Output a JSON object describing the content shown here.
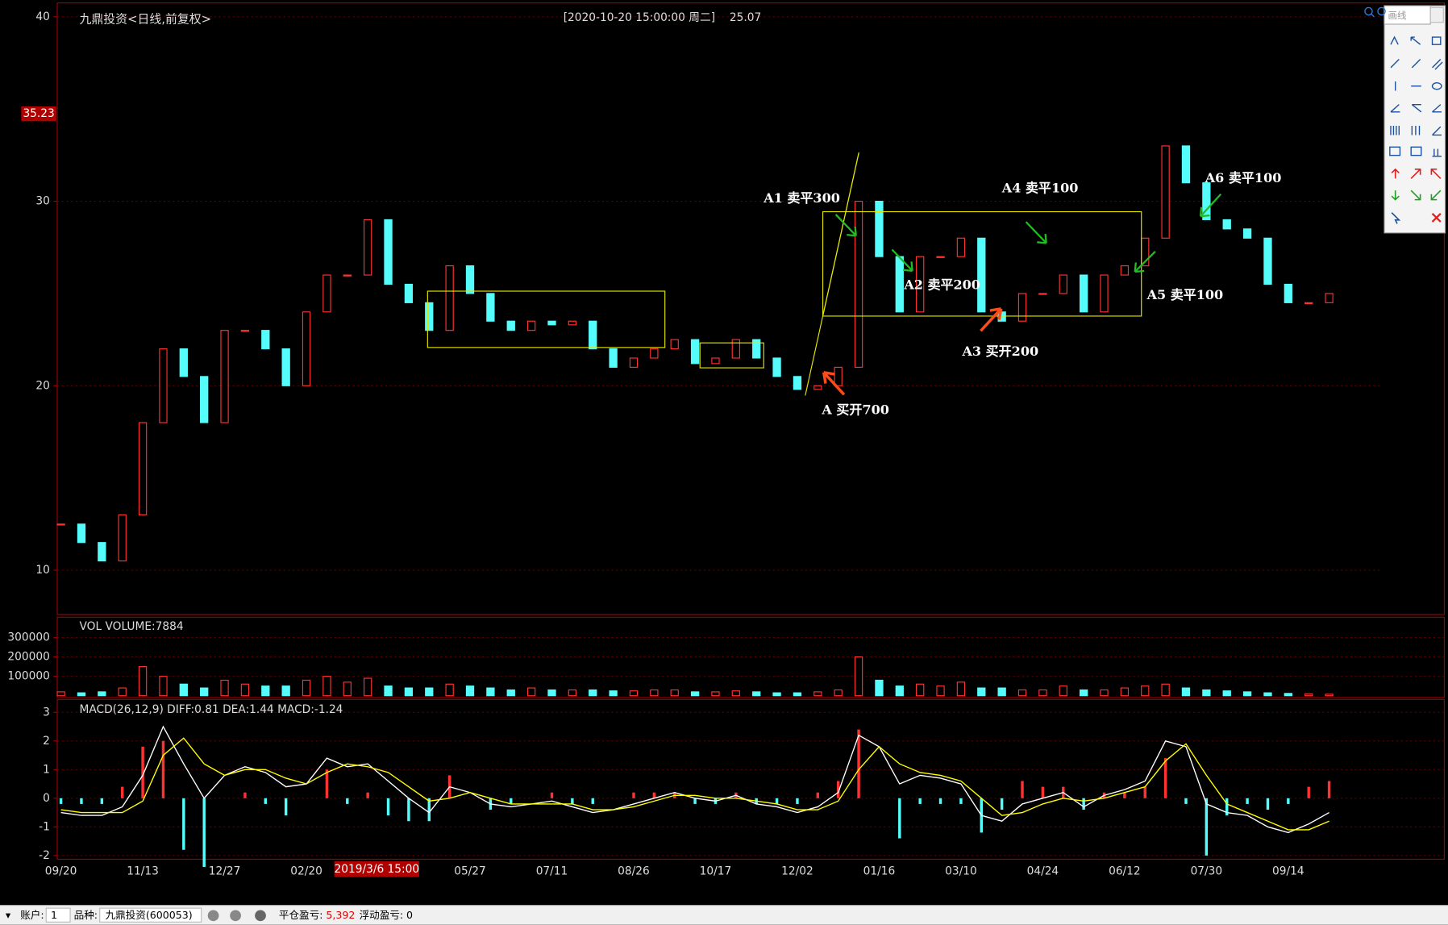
{
  "header": {
    "title": "九鼎投资<日线,前复权>",
    "datetime": "[2020-10-20  15:00:00 周二]",
    "price": "25.07",
    "cursor_price": "35.23",
    "cursor_date": "2019/3/6 15:00",
    "volume_label": "VOL  VOLUME:7884",
    "macd_label": "MACD(26,12,9)  DIFF:0.81  DEA:1.44  MACD:-1.24"
  },
  "chart_data": [
    {
      "type": "candlestick",
      "up_color": "#ff3232",
      "down_color": "#54fcfc",
      "ylim": [
        7.6,
        40.75
      ],
      "yticks": [
        10,
        20,
        30,
        40
      ],
      "grid": true,
      "categories": [
        "09/20",
        null,
        null,
        null,
        "11/13",
        null,
        null,
        null,
        "12/27",
        null,
        null,
        null,
        "02/20",
        null,
        null,
        null,
        null,
        null,
        null,
        null,
        "05/27",
        null,
        null,
        null,
        "07/11",
        null,
        null,
        null,
        "08/26",
        null,
        null,
        null,
        "10/17",
        null,
        null,
        null,
        "12/02",
        null,
        null,
        null,
        "01/16",
        null,
        null,
        null,
        "03/10",
        null,
        null,
        null,
        "04/24",
        null,
        null,
        null,
        "06/12",
        null,
        null,
        null,
        "07/30",
        null,
        null,
        null,
        "09/14",
        null,
        null
      ],
      "values": [
        12.5,
        11.5,
        10.5,
        13,
        18,
        22,
        20.5,
        18,
        23,
        23,
        22,
        20,
        24,
        26,
        26,
        29,
        25.5,
        24.5,
        23,
        26.5,
        25,
        23.5,
        23,
        23.5,
        23.3,
        23.5,
        22,
        21,
        21.5,
        22,
        22.5,
        21.2,
        21.5,
        22.5,
        21.5,
        20.5,
        19.8,
        20,
        21,
        30,
        27,
        24,
        27,
        27,
        28,
        24,
        23.5,
        25,
        25,
        26,
        24,
        26,
        26.5,
        28,
        33,
        31,
        29,
        28.5,
        28,
        25.5,
        24.5,
        24.5,
        25
      ]
    },
    {
      "type": "bar",
      "up_color": "#ff3232",
      "down_color": "#54fcfc",
      "ylim": [
        0,
        395000
      ],
      "yticks": [
        100000,
        200000,
        300000
      ],
      "grid": true,
      "values": [
        20000,
        15000,
        20000,
        40000,
        150000,
        100000,
        60000,
        40000,
        80000,
        60000,
        50000,
        50000,
        80000,
        100000,
        70000,
        90000,
        50000,
        40000,
        40000,
        60000,
        50000,
        40000,
        30000,
        40000,
        30000,
        30000,
        30000,
        25000,
        25000,
        30000,
        30000,
        20000,
        20000,
        25000,
        20000,
        15000,
        15000,
        20000,
        30000,
        200000,
        80000,
        50000,
        60000,
        50000,
        70000,
        40000,
        40000,
        30000,
        30000,
        50000,
        30000,
        30000,
        40000,
        50000,
        60000,
        40000,
        30000,
        25000,
        20000,
        15000,
        12000,
        10000,
        7884
      ]
    },
    {
      "type": "macd",
      "ylim": [
        -2.13,
        3.45
      ],
      "yticks": [
        -2,
        -1,
        0,
        1,
        2,
        3
      ],
      "grid": true,
      "series": [
        {
          "color": "#ffffff",
          "values": [
            -0.5,
            -0.6,
            -0.6,
            -0.3,
            0.8,
            2.5,
            1.2,
            0.0,
            0.8,
            1.1,
            0.9,
            0.4,
            0.5,
            1.4,
            1.1,
            1.2,
            0.6,
            0.0,
            -0.5,
            0.4,
            0.2,
            -0.2,
            -0.3,
            -0.2,
            -0.1,
            -0.3,
            -0.5,
            -0.4,
            -0.2,
            0.0,
            0.2,
            0.0,
            -0.1,
            0.1,
            -0.2,
            -0.3,
            -0.5,
            -0.3,
            0.2,
            2.2,
            1.8,
            0.5,
            0.8,
            0.7,
            0.5,
            -0.6,
            -0.8,
            -0.2,
            0.0,
            0.2,
            -0.3,
            0.1,
            0.3,
            0.6,
            2.0,
            1.8,
            -0.2,
            -0.5,
            -0.6,
            -1.0,
            -1.2,
            -0.9,
            -0.5
          ]
        },
        {
          "color": "#ffff00",
          "values": [
            -0.4,
            -0.5,
            -0.5,
            -0.5,
            -0.1,
            1.5,
            2.1,
            1.2,
            0.8,
            1.0,
            1.0,
            0.7,
            0.5,
            0.9,
            1.2,
            1.1,
            0.9,
            0.4,
            -0.1,
            0.0,
            0.2,
            0.0,
            -0.2,
            -0.2,
            -0.2,
            -0.2,
            -0.4,
            -0.4,
            -0.3,
            -0.1,
            0.1,
            0.1,
            0.0,
            0.0,
            -0.1,
            -0.2,
            -0.4,
            -0.4,
            -0.1,
            1.0,
            1.8,
            1.2,
            0.9,
            0.8,
            0.6,
            0.0,
            -0.6,
            -0.5,
            -0.2,
            0.0,
            -0.1,
            0.0,
            0.2,
            0.4,
            1.3,
            1.9,
            0.8,
            -0.2,
            -0.5,
            -0.8,
            -1.1,
            -1.1,
            -0.8
          ]
        }
      ],
      "histogram": {
        "up_color": "#ff3232",
        "down_color": "#54fcfc",
        "values": [
          -0.2,
          -0.2,
          -0.2,
          0.4,
          1.8,
          2.0,
          -1.8,
          -2.4,
          0.0,
          0.2,
          -0.2,
          -0.6,
          0.0,
          1.0,
          -0.2,
          0.2,
          -0.6,
          -0.8,
          -0.8,
          0.8,
          0.0,
          -0.4,
          -0.2,
          0.0,
          0.2,
          -0.2,
          -0.2,
          0.0,
          0.2,
          0.2,
          0.2,
          -0.2,
          -0.2,
          0.2,
          -0.2,
          -0.2,
          -0.2,
          0.2,
          0.6,
          2.4,
          0.0,
          -1.4,
          -0.2,
          -0.2,
          -0.2,
          -1.2,
          -0.4,
          0.6,
          0.4,
          0.4,
          -0.4,
          0.2,
          0.2,
          0.4,
          1.4,
          -0.2,
          -2.0,
          -0.6,
          -0.2,
          -0.4,
          -0.2,
          0.4,
          0.6
        ]
      }
    }
  ],
  "annotations": [
    "A1  卖平300",
    "A2  卖平200",
    "A3  买开200",
    "A4  卖平100",
    "A5  卖平100",
    "A6  卖平100",
    "A  买开700"
  ],
  "toolbar": {
    "title": "画线"
  },
  "status_bar": {
    "account_label": "账户:",
    "account": "1",
    "symbol_label": "品种:",
    "symbol": "九鼎投资(600053)",
    "closed_pnl_label": "平仓盈亏:",
    "closed_pnl": "5,392",
    "floating_pnl_label": "浮动盈亏:",
    "floating_pnl": "0"
  }
}
